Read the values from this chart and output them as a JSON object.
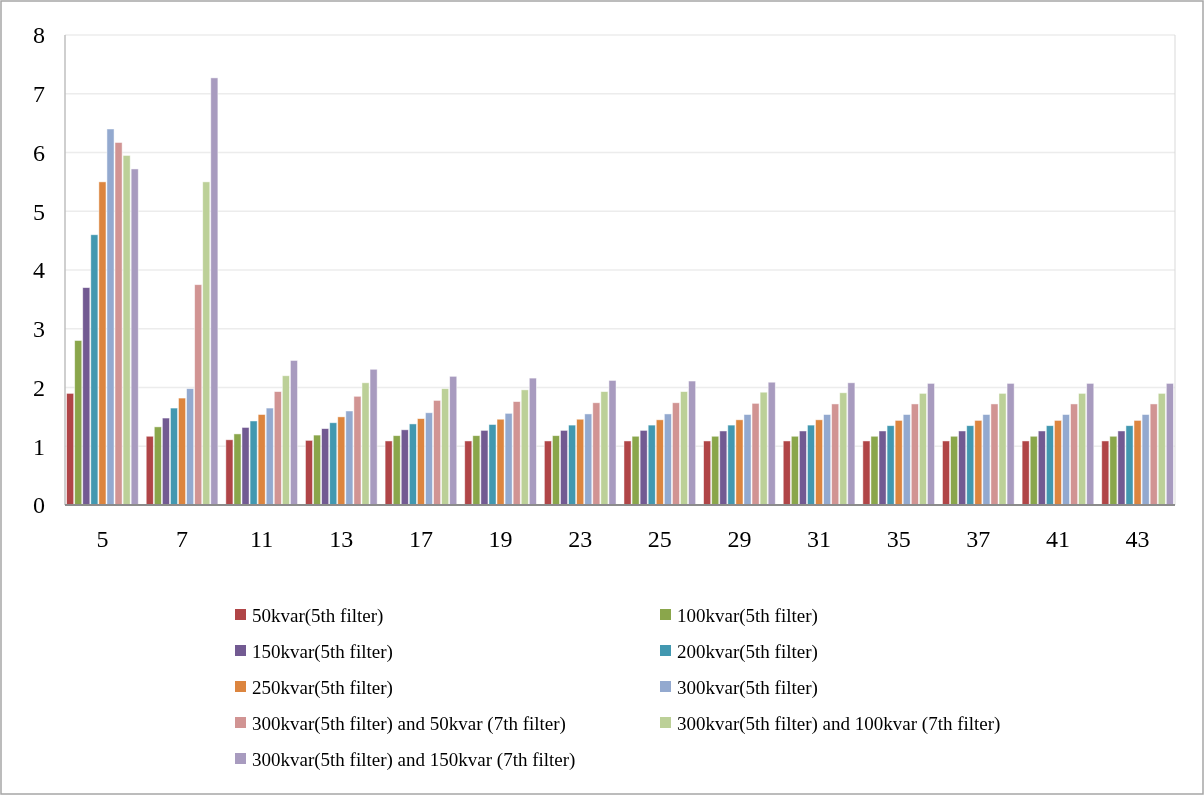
{
  "chart_data": {
    "type": "bar",
    "categories": [
      "5",
      "7",
      "11",
      "13",
      "17",
      "19",
      "23",
      "25",
      "29",
      "31",
      "35",
      "37",
      "41",
      "43"
    ],
    "ylim": [
      0,
      8
    ],
    "yticks": [
      0,
      1,
      2,
      3,
      4,
      5,
      6,
      7,
      8
    ],
    "grid": "y",
    "legend": "bottom",
    "series": [
      {
        "name": "50kvar(5th filter)",
        "color": "#b04547",
        "values": [
          1.9,
          1.17,
          1.11,
          1.1,
          1.09,
          1.09,
          1.09,
          1.09,
          1.09,
          1.09,
          1.09,
          1.09,
          1.09,
          1.09
        ]
      },
      {
        "name": "100kvar(5th filter)",
        "color": "#8aa64b",
        "values": [
          2.8,
          1.33,
          1.21,
          1.19,
          1.18,
          1.18,
          1.18,
          1.17,
          1.17,
          1.17,
          1.17,
          1.17,
          1.17,
          1.17
        ]
      },
      {
        "name": "150kvar(5th filter)",
        "color": "#725a92",
        "values": [
          3.7,
          1.48,
          1.32,
          1.3,
          1.28,
          1.27,
          1.27,
          1.27,
          1.26,
          1.26,
          1.26,
          1.26,
          1.26,
          1.26
        ]
      },
      {
        "name": "200kvar(5th filter)",
        "color": "#4298b0",
        "values": [
          4.6,
          1.65,
          1.43,
          1.4,
          1.38,
          1.37,
          1.36,
          1.36,
          1.36,
          1.36,
          1.35,
          1.35,
          1.35,
          1.35
        ]
      },
      {
        "name": "250kvar(5th filter)",
        "color": "#dc853f",
        "values": [
          5.5,
          1.82,
          1.54,
          1.5,
          1.47,
          1.46,
          1.46,
          1.45,
          1.45,
          1.45,
          1.44,
          1.44,
          1.44,
          1.44
        ]
      },
      {
        "name": "300kvar(5th filter)",
        "color": "#93a9cf",
        "values": [
          6.4,
          1.98,
          1.65,
          1.6,
          1.57,
          1.56,
          1.55,
          1.55,
          1.54,
          1.54,
          1.54,
          1.54,
          1.54,
          1.54
        ]
      },
      {
        "name": "300kvar(5th filter) and 50kvar (7th filter)",
        "color": "#d19493",
        "values": [
          6.17,
          3.75,
          1.93,
          1.85,
          1.78,
          1.76,
          1.74,
          1.74,
          1.73,
          1.72,
          1.72,
          1.72,
          1.72,
          1.72
        ]
      },
      {
        "name": "300kvar(5th filter) and 100kvar (7th filter)",
        "color": "#bcd098",
        "values": [
          5.95,
          5.5,
          2.2,
          2.08,
          1.98,
          1.96,
          1.93,
          1.93,
          1.92,
          1.91,
          1.9,
          1.9,
          1.9,
          1.9
        ]
      },
      {
        "name": "300kvar(5th filter) and 150kvar (7th filter)",
        "color": "#a89bbf",
        "values": [
          5.72,
          7.27,
          2.46,
          2.31,
          2.19,
          2.16,
          2.12,
          2.11,
          2.09,
          2.08,
          2.07,
          2.07,
          2.07,
          2.07
        ]
      }
    ]
  }
}
